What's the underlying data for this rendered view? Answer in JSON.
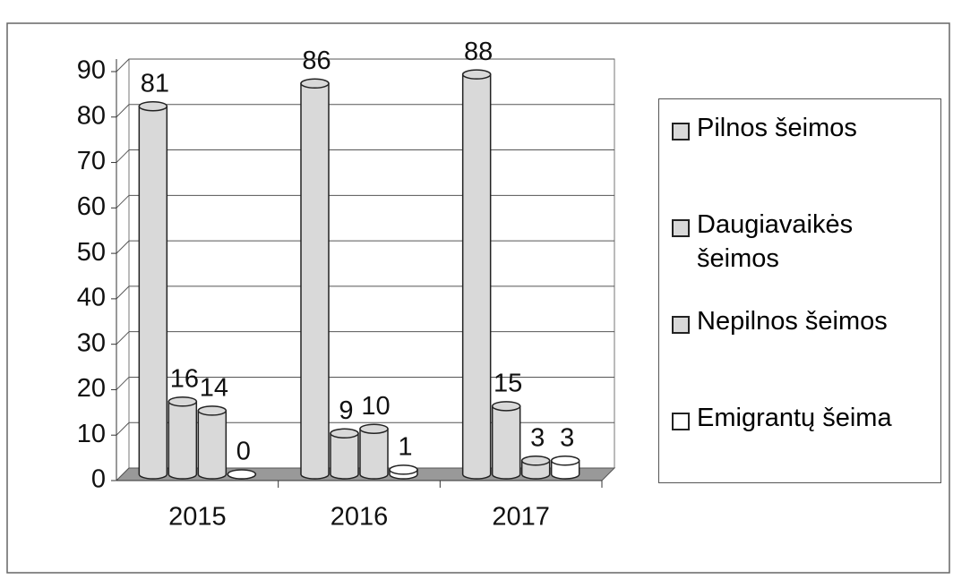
{
  "chart_data": {
    "type": "bar3d",
    "categories": [
      "2015",
      "2016",
      "2017"
    ],
    "series": [
      {
        "name": "Pilnos šeimos",
        "color": "#d9d9d9",
        "values": [
          81,
          86,
          88
        ]
      },
      {
        "name": "Daugiavaikės šeimos",
        "color": "#d9d9d9",
        "values": [
          16,
          9,
          15
        ]
      },
      {
        "name": "Nepilnos šeimos",
        "color": "#d9d9d9",
        "values": [
          14,
          10,
          3
        ]
      },
      {
        "name": "Emigrantų šeima",
        "color": "#ffffff",
        "values": [
          0,
          1,
          3
        ]
      }
    ],
    "ylim": [
      0,
      90
    ],
    "yticks": [
      0,
      10,
      20,
      30,
      40,
      50,
      60,
      70,
      80,
      90
    ],
    "grid": true,
    "legend": "right"
  }
}
